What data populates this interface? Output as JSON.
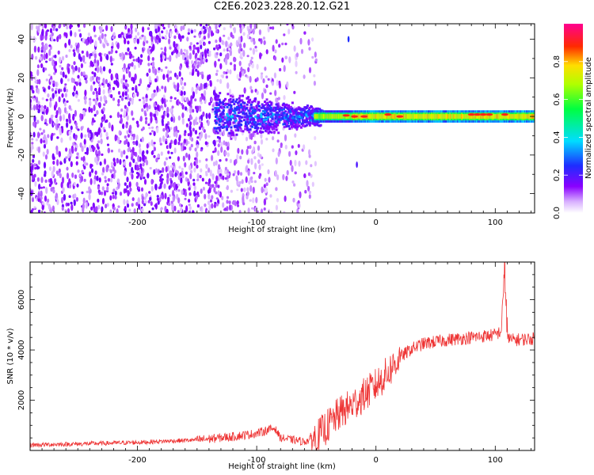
{
  "title": "C2E6.2023.228.20.12.G21",
  "chart_data": [
    {
      "type": "heatmap",
      "xlabel": "Height of straight line (km)",
      "ylabel": "Frequency (Hz)",
      "xlim": [
        -290,
        133
      ],
      "ylim": [
        -50,
        48
      ],
      "x_ticks": [
        "-200",
        "-100",
        "0",
        "100"
      ],
      "y_ticks": [
        "-40",
        "-20",
        "0",
        "20",
        "40"
      ],
      "x_tick_values": [
        -200,
        -100,
        0,
        100
      ],
      "y_tick_values": [
        -40,
        -20,
        0,
        20,
        40
      ],
      "description_of_signal": [
        {
          "x_start": -290,
          "x_end": -130,
          "freq_spread": 48,
          "amplitude": 0.15
        },
        {
          "x_start": -130,
          "x_end": -50,
          "freq_spread": 12,
          "amplitude": 0.35
        },
        {
          "x_start": -50,
          "x_end": 133,
          "freq_spread": 2,
          "amplitude": 0.9
        }
      ],
      "colorbar": {
        "label": "Normalized spectral amplitude",
        "ticks": [
          "0.0",
          "0.2",
          "0.4",
          "0.6",
          "0.8"
        ],
        "tick_values": [
          0.0,
          0.2,
          0.4,
          0.6,
          0.8
        ],
        "range": [
          0,
          1
        ],
        "colors": [
          "#ffffff",
          "#9a00ff",
          "#3000ff",
          "#00ffff",
          "#00ff00",
          "#ffff00",
          "#ff0000",
          "#ff0088"
        ]
      }
    },
    {
      "type": "line",
      "xlabel": "Height of straight line (km)",
      "ylabel": "SNR (10 * v/v)",
      "xlim": [
        -290,
        133
      ],
      "ylim": [
        0,
        7500
      ],
      "x_ticks": [
        "-200",
        "-100",
        "0",
        "100"
      ],
      "y_ticks": [
        "2000",
        "4000",
        "6000"
      ],
      "x_tick_values": [
        -200,
        -100,
        0,
        100
      ],
      "y_tick_values": [
        2000,
        4000,
        6000
      ],
      "color": "#ee3333",
      "series": [
        {
          "x": [
            -290,
            -250,
            -200,
            -150,
            -120,
            -100,
            -85,
            -80,
            -60,
            -50,
            -40,
            -30,
            -20,
            -10,
            0,
            10,
            20,
            30,
            40,
            60,
            80,
            100,
            105,
            108,
            110,
            115,
            133
          ],
          "y": [
            220,
            260,
            320,
            420,
            550,
            680,
            900,
            500,
            350,
            500,
            1000,
            1500,
            1800,
            2200,
            2600,
            3100,
            3700,
            4050,
            4250,
            4400,
            4500,
            4600,
            4750,
            7400,
            4450,
            4400,
            4450
          ]
        }
      ]
    }
  ]
}
